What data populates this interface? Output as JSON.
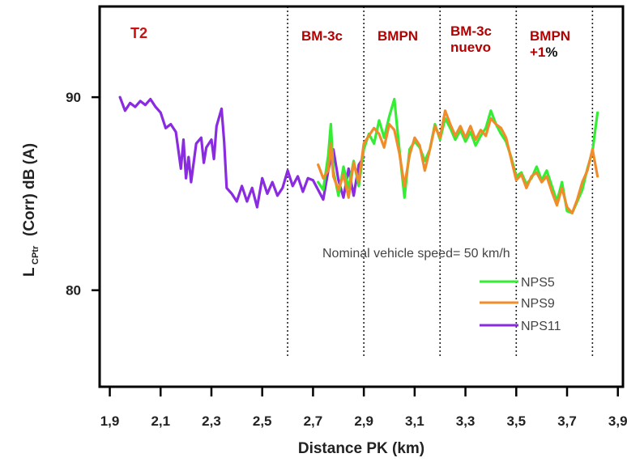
{
  "chart_data": {
    "type": "line",
    "panel_label": "T2",
    "xlabel": "Distance  PK (km)",
    "ylabel": {
      "main": "L",
      "subscript": "CPtr",
      "rest": "(Corr)   dB (A)"
    },
    "xlim": [
      1.86,
      3.92
    ],
    "ylim": [
      75.0,
      94.7
    ],
    "x_ticks": [
      1.9,
      2.1,
      2.3,
      2.5,
      2.7,
      2.9,
      3.1,
      3.3,
      3.5,
      3.7,
      3.9
    ],
    "x_tick_labels": [
      "1,9",
      "2,1",
      "2,3",
      "2,5",
      "2,7",
      "2,9",
      "3,1",
      "3,3",
      "3,5",
      "3,7",
      "3,9"
    ],
    "y_ticks": [
      80,
      90
    ],
    "y_tick_labels": [
      "80",
      "90"
    ],
    "grid": false,
    "sections": [
      {
        "label": "BM-3c"
      },
      {
        "label": "BMPN"
      },
      {
        "label": "BM-3c nuevo"
      },
      {
        "label": "BMPN +1%"
      }
    ],
    "dividers_x": [
      2.6,
      2.9,
      3.2,
      3.5,
      3.8
    ],
    "annotation": "Nominal vehicle speed= 50 km/h",
    "legend_position": "right",
    "series": [
      {
        "name": "NPS11",
        "color": "#8a2be2",
        "x": [
          1.94,
          1.96,
          1.98,
          2.0,
          2.02,
          2.04,
          2.06,
          2.08,
          2.1,
          2.12,
          2.14,
          2.16,
          2.18,
          2.19,
          2.2,
          2.21,
          2.22,
          2.24,
          2.26,
          2.27,
          2.28,
          2.3,
          2.31,
          2.32,
          2.34,
          2.35,
          2.36,
          2.38,
          2.4,
          2.42,
          2.44,
          2.46,
          2.48,
          2.5,
          2.52,
          2.54,
          2.56,
          2.58,
          2.6,
          2.62,
          2.64,
          2.66,
          2.68,
          2.7,
          2.72,
          2.74,
          2.76,
          2.78,
          2.8,
          2.82,
          2.84,
          2.86,
          2.88,
          2.9
        ],
        "y": [
          90.0,
          89.3,
          89.7,
          89.5,
          89.8,
          89.6,
          89.9,
          89.5,
          89.2,
          88.4,
          88.6,
          88.2,
          86.3,
          87.8,
          85.8,
          86.9,
          85.6,
          87.6,
          87.9,
          86.6,
          87.4,
          87.8,
          86.8,
          88.5,
          89.4,
          87.7,
          85.3,
          85.0,
          84.6,
          85.4,
          84.6,
          85.3,
          84.3,
          85.8,
          85.0,
          85.6,
          84.9,
          85.3,
          86.2,
          85.4,
          85.9,
          85.1,
          85.8,
          85.7,
          85.2,
          84.7,
          86.2,
          87.3,
          85.7,
          84.8,
          86.3,
          84.9,
          86.5,
          86.9
        ]
      },
      {
        "name": "NPS5",
        "color": "#33ee33",
        "x": [
          2.72,
          2.74,
          2.76,
          2.77,
          2.78,
          2.8,
          2.82,
          2.84,
          2.86,
          2.88,
          2.9,
          2.92,
          2.94,
          2.96,
          2.98,
          3.0,
          3.02,
          3.04,
          3.06,
          3.08,
          3.1,
          3.12,
          3.14,
          3.16,
          3.18,
          3.2,
          3.22,
          3.24,
          3.26,
          3.28,
          3.3,
          3.32,
          3.34,
          3.36,
          3.38,
          3.4,
          3.42,
          3.44,
          3.46,
          3.48,
          3.5,
          3.52,
          3.54,
          3.56,
          3.58,
          3.6,
          3.62,
          3.64,
          3.66,
          3.68,
          3.7,
          3.72,
          3.74,
          3.76,
          3.78,
          3.8,
          3.82
        ],
        "y": [
          85.6,
          85.2,
          87.0,
          88.6,
          86.2,
          84.9,
          86.4,
          85.3,
          86.7,
          85.4,
          87.3,
          88.1,
          87.6,
          88.8,
          87.9,
          89.0,
          89.9,
          87.3,
          84.8,
          87.3,
          87.7,
          87.4,
          86.7,
          87.3,
          88.6,
          87.8,
          88.9,
          88.4,
          87.8,
          88.3,
          87.7,
          88.2,
          87.5,
          88.0,
          88.4,
          89.3,
          88.6,
          88.1,
          87.7,
          86.9,
          85.9,
          86.1,
          85.5,
          85.8,
          86.4,
          85.7,
          86.2,
          85.4,
          84.6,
          85.6,
          84.1,
          84.0,
          84.6,
          85.2,
          86.3,
          87.2,
          89.2
        ]
      },
      {
        "name": "NPS9",
        "color": "#f08c2a",
        "x": [
          2.72,
          2.74,
          2.76,
          2.77,
          2.78,
          2.8,
          2.82,
          2.84,
          2.86,
          2.88,
          2.9,
          2.92,
          2.94,
          2.96,
          2.98,
          3.0,
          3.02,
          3.04,
          3.06,
          3.08,
          3.1,
          3.12,
          3.14,
          3.16,
          3.18,
          3.2,
          3.22,
          3.24,
          3.26,
          3.28,
          3.3,
          3.32,
          3.34,
          3.36,
          3.38,
          3.4,
          3.42,
          3.44,
          3.46,
          3.48,
          3.5,
          3.52,
          3.54,
          3.56,
          3.58,
          3.6,
          3.62,
          3.64,
          3.66,
          3.68,
          3.7,
          3.72,
          3.74,
          3.76,
          3.78,
          3.8,
          3.82
        ],
        "y": [
          86.5,
          85.8,
          86.2,
          87.6,
          85.9,
          85.2,
          86.0,
          84.8,
          86.6,
          85.6,
          87.6,
          88.0,
          88.4,
          88.1,
          87.4,
          88.6,
          88.3,
          87.1,
          85.4,
          87.0,
          87.9,
          87.5,
          86.2,
          87.3,
          88.5,
          87.9,
          89.3,
          88.6,
          88.0,
          88.5,
          87.9,
          88.5,
          87.8,
          88.3,
          88.0,
          88.9,
          88.6,
          88.4,
          87.9,
          86.8,
          85.7,
          86.0,
          85.3,
          85.9,
          86.1,
          85.6,
          85.9,
          85.1,
          84.4,
          85.3,
          84.3,
          84.0,
          84.7,
          85.6,
          86.2,
          87.3,
          85.9
        ]
      }
    ]
  }
}
